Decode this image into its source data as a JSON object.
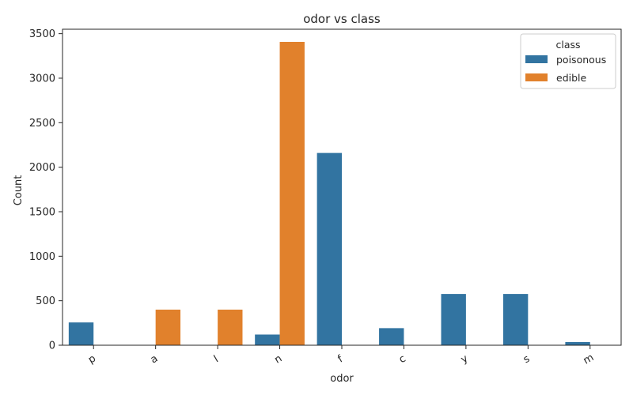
{
  "chart_data": {
    "type": "bar",
    "title": "odor vs class",
    "xlabel": "odor",
    "ylabel": "Count",
    "categories": [
      "p",
      "a",
      "l",
      "n",
      "f",
      "c",
      "y",
      "s",
      "m"
    ],
    "series": [
      {
        "name": "poisonous",
        "color": "#3274a1",
        "values": [
          256,
          0,
          0,
          120,
          2160,
          192,
          576,
          576,
          36
        ]
      },
      {
        "name": "edible",
        "color": "#e1812c",
        "values": [
          0,
          400,
          400,
          3408,
          0,
          0,
          0,
          0,
          0
        ]
      }
    ],
    "ylim": [
      0,
      3550
    ],
    "yticks": [
      0,
      500,
      1000,
      1500,
      2000,
      2500,
      3000,
      3500
    ],
    "legend": {
      "title": "class",
      "position": "top-right"
    },
    "grid": false
  }
}
